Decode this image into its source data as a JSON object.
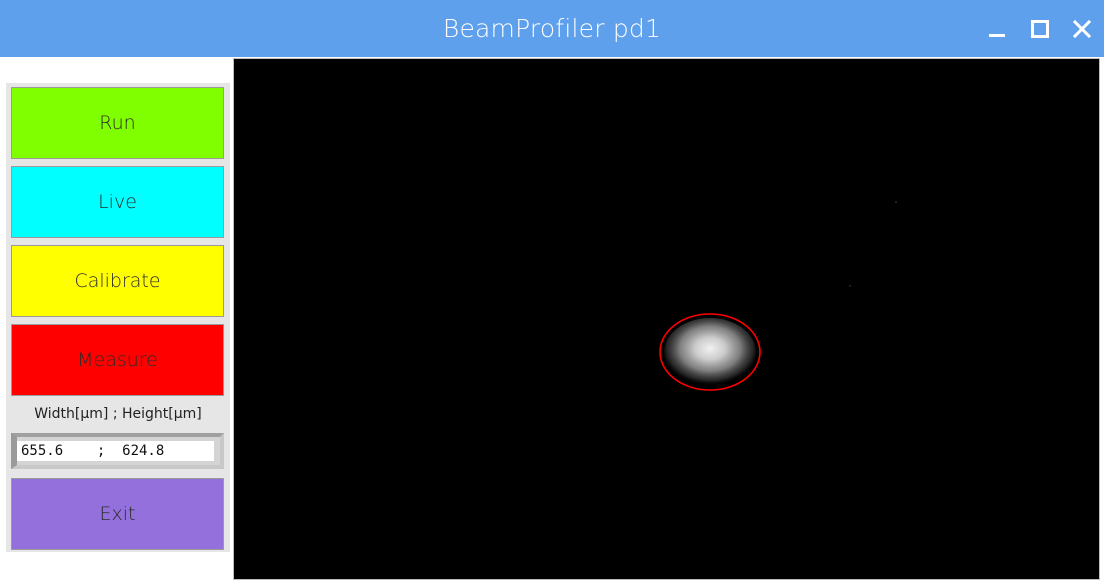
{
  "window": {
    "title": "BeamProfiler pd1",
    "controls": [
      "minimize-icon",
      "maximize-icon",
      "close-icon"
    ]
  },
  "sidebar": {
    "buttons": {
      "run": {
        "label": "Run",
        "color": "#7fff00"
      },
      "live": {
        "label": "Live",
        "color": "#00ffff"
      },
      "calibrate": {
        "label": "Calibrate",
        "color": "#ffff00"
      },
      "measure": {
        "label": "Measure",
        "color": "#ff0000"
      },
      "exit": {
        "label": "Exit",
        "color": "#9370db"
      }
    },
    "dimension_label": "Width[µm] ; Height[µm]",
    "dimension_value": "655.6    ;  624.8"
  },
  "viewport": {
    "background": "#000000",
    "beam_fit_color": "#ff0000"
  }
}
